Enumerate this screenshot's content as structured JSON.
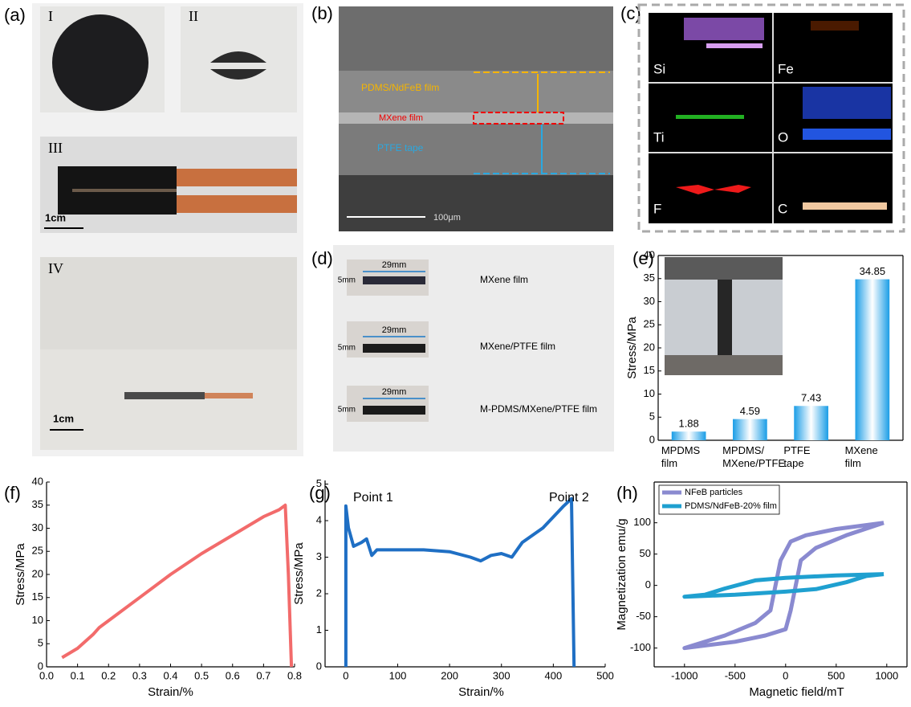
{
  "panel_labels": [
    "(a)",
    "(b)",
    "(c)",
    "(d)",
    "(e)",
    "(f)",
    "(g)",
    "(h)"
  ],
  "panel_a": {
    "roman": [
      "I",
      "II",
      "III",
      "IV"
    ],
    "scale_bars": [
      "1cm",
      "1cm"
    ]
  },
  "panel_b": {
    "labels": [
      "PDMS/NdFeB film",
      "MXene film",
      "PTFE tape"
    ],
    "scale": "100μm"
  },
  "panel_c": {
    "elements": [
      "Si",
      "Fe",
      "Ti",
      "O",
      "F",
      "C"
    ]
  },
  "panel_d": {
    "width_label": "29mm",
    "height_label": "5mm",
    "samples": [
      "MXene film",
      "MXene/PTFE film",
      "M-PDMS/MXene/PTFE film"
    ]
  },
  "chart_data": [
    {
      "type": "bar",
      "ylabel": "Stress/MPa",
      "categories": [
        "MPDMS film",
        "MPDMS/ MXene/PTFE",
        "PTFE tape",
        "MXene film"
      ],
      "values": [
        1.88,
        4.59,
        7.43,
        34.85
      ],
      "color": "#1a9de6",
      "ylim": [
        0,
        40
      ],
      "yticks": [
        0,
        5,
        10,
        15,
        20,
        25,
        30,
        35,
        40
      ]
    },
    {
      "type": "line",
      "xlabel": "Strain/%",
      "ylabel": "Stress/MPa",
      "series": [
        {
          "color": "#f26b6b",
          "x": [
            0.05,
            0.1,
            0.15,
            0.17,
            0.2,
            0.3,
            0.4,
            0.5,
            0.6,
            0.7,
            0.75,
            0.77,
            0.78,
            0.79
          ],
          "values": [
            2,
            4,
            7,
            8.5,
            10,
            15,
            20,
            24.5,
            28.5,
            32.5,
            34,
            35,
            20,
            0
          ]
        }
      ],
      "xlim": [
        0,
        0.8
      ],
      "xticks": [
        {
          "value": 0,
          "label": "0.0"
        },
        0.1,
        0.2,
        0.3,
        0.4,
        0.5,
        0.6,
        0.7,
        0.8
      ],
      "ylim": [
        0,
        40
      ],
      "yticks": [
        0,
        5,
        10,
        15,
        20,
        25,
        30,
        35,
        40
      ]
    },
    {
      "type": "line",
      "xlabel": "Strain/%",
      "ylabel": "Stress/MPa",
      "annotations": [
        "Point 1",
        "Point 2"
      ],
      "series": [
        {
          "color": "#1f6fc4",
          "x": [
            0,
            0,
            5,
            15,
            30,
            40,
            50,
            60,
            100,
            150,
            200,
            240,
            260,
            280,
            300,
            320,
            340,
            380,
            420,
            435,
            440
          ],
          "values": [
            0,
            4.4,
            3.8,
            3.3,
            3.4,
            3.5,
            3.05,
            3.2,
            3.2,
            3.2,
            3.15,
            3.0,
            2.9,
            3.05,
            3.1,
            3.0,
            3.4,
            3.8,
            4.4,
            4.6,
            0
          ]
        }
      ],
      "xlim": [
        -40,
        500
      ],
      "xticks": [
        0,
        100,
        200,
        300,
        400,
        500
      ],
      "ylim": [
        0,
        5.1
      ],
      "yticks": [
        0,
        1,
        2,
        3,
        4,
        5
      ]
    },
    {
      "type": "line",
      "xlabel": "Magnetic field/mT",
      "ylabel": "Magnetization emu/g",
      "series": [
        {
          "name": "NFeB particles",
          "color": "#8a8ad0",
          "x": [
            970,
            500,
            200,
            50,
            -50,
            -100,
            -150,
            -300,
            -600,
            -1000,
            -500,
            -200,
            0,
            50,
            100,
            150,
            300,
            600,
            970
          ],
          "values": [
            100,
            90,
            80,
            70,
            40,
            0,
            -40,
            -60,
            -80,
            -100,
            -90,
            -80,
            -70,
            -40,
            0,
            40,
            60,
            80,
            100
          ]
        },
        {
          "name": "PDMS/NdFeB-20% film",
          "color": "#1fa0d0",
          "x": [
            970,
            500,
            0,
            -300,
            -600,
            -800,
            -1000,
            -500,
            0,
            300,
            600,
            800,
            970
          ],
          "values": [
            18,
            16,
            12,
            8,
            -5,
            -15,
            -18,
            -15,
            -10,
            -6,
            5,
            15,
            18
          ]
        }
      ],
      "xlim": [
        -1300,
        1200
      ],
      "xticks": [
        -1000,
        -500,
        0,
        500,
        1000
      ],
      "ylim": [
        -130,
        165
      ],
      "yticks": [
        -100,
        -50,
        0,
        50,
        100
      ]
    }
  ]
}
